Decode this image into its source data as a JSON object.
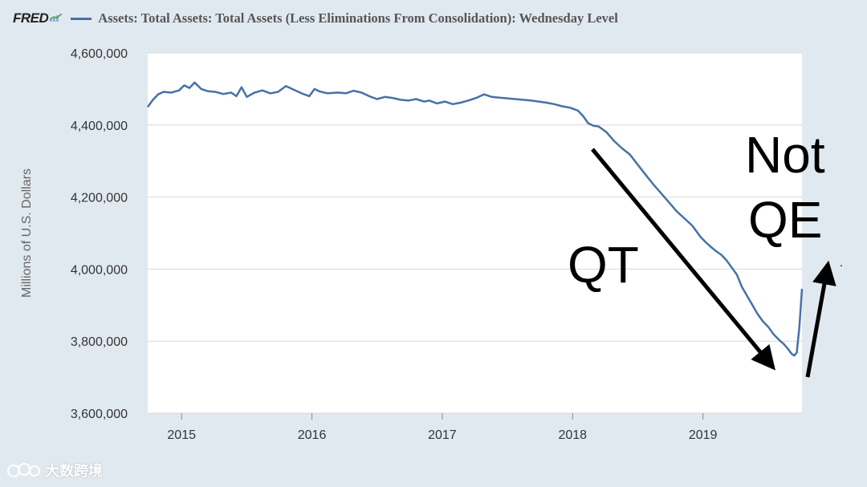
{
  "header": {
    "logo": "FRED",
    "logo_icon": "chart-trend-icon",
    "series_title": "Assets: Total Assets: Total Assets (Less Eliminations From Consolidation): Wednesday Level"
  },
  "colors": {
    "line": "#4572a7",
    "plot_bg": "#ffffff",
    "page_bg": "#e1e9f0",
    "grid": "#d8d8d8",
    "annotation": "#000000"
  },
  "chart_data": {
    "type": "line",
    "title": "Assets: Total Assets: Total Assets (Less Eliminations From Consolidation): Wednesday Level",
    "xlabel": "",
    "ylabel": "Millions of U.S. Dollars",
    "xlim": [
      2014.74,
      2019.76
    ],
    "ylim": [
      3600000,
      4600000
    ],
    "yticks": [
      3600000,
      3800000,
      4000000,
      4200000,
      4400000,
      4600000
    ],
    "ytick_labels": [
      "3,600,000",
      "3,800,000",
      "4,000,000",
      "4,200,000",
      "4,400,000",
      "4,600,000"
    ],
    "xticks": [
      2015,
      2016,
      2017,
      2018,
      2019
    ],
    "xtick_labels": [
      "2015",
      "2016",
      "2017",
      "2018",
      "2019"
    ],
    "grid": true,
    "series": [
      {
        "name": "Total Assets",
        "x": [
          2014.74,
          2014.78,
          2014.82,
          2014.86,
          2014.92,
          2014.98,
          2015.02,
          2015.06,
          2015.1,
          2015.15,
          2015.2,
          2015.26,
          2015.32,
          2015.38,
          2015.42,
          2015.46,
          2015.5,
          2015.56,
          2015.62,
          2015.68,
          2015.74,
          2015.8,
          2015.86,
          2015.92,
          2015.98,
          2016.02,
          2016.06,
          2016.12,
          2016.2,
          2016.26,
          2016.32,
          2016.38,
          2016.44,
          2016.5,
          2016.56,
          2016.62,
          2016.68,
          2016.74,
          2016.8,
          2016.86,
          2016.9,
          2016.96,
          2017.02,
          2017.08,
          2017.14,
          2017.2,
          2017.26,
          2017.32,
          2017.38,
          2017.44,
          2017.5,
          2017.56,
          2017.62,
          2017.68,
          2017.74,
          2017.8,
          2017.86,
          2017.92,
          2017.98,
          2018.04,
          2018.08,
          2018.12,
          2018.16,
          2018.2,
          2018.26,
          2018.32,
          2018.38,
          2018.44,
          2018.5,
          2018.56,
          2018.62,
          2018.68,
          2018.74,
          2018.8,
          2018.86,
          2018.92,
          2018.98,
          2019.02,
          2019.06,
          2019.1,
          2019.14,
          2019.18,
          2019.22,
          2019.26,
          2019.3,
          2019.34,
          2019.38,
          2019.42,
          2019.46,
          2019.5,
          2019.54,
          2019.58,
          2019.62,
          2019.65,
          2019.68,
          2019.7,
          2019.72,
          2019.74,
          2019.76
        ],
        "y": [
          4450000,
          4470000,
          4485000,
          4492000,
          4490000,
          4496000,
          4510000,
          4503000,
          4518000,
          4500000,
          4494000,
          4492000,
          4486000,
          4490000,
          4480000,
          4505000,
          4478000,
          4490000,
          4496000,
          4488000,
          4492000,
          4508000,
          4498000,
          4488000,
          4480000,
          4500000,
          4493000,
          4488000,
          4490000,
          4488000,
          4495000,
          4490000,
          4480000,
          4472000,
          4478000,
          4475000,
          4470000,
          4468000,
          4472000,
          4465000,
          4468000,
          4460000,
          4465000,
          4458000,
          4462000,
          4468000,
          4475000,
          4485000,
          4478000,
          4476000,
          4474000,
          4472000,
          4470000,
          4468000,
          4465000,
          4462000,
          4458000,
          4452000,
          4448000,
          4440000,
          4425000,
          4405000,
          4398000,
          4396000,
          4380000,
          4355000,
          4335000,
          4318000,
          4290000,
          4262000,
          4235000,
          4210000,
          4185000,
          4160000,
          4140000,
          4120000,
          4090000,
          4075000,
          4062000,
          4050000,
          4040000,
          4025000,
          4005000,
          3985000,
          3950000,
          3925000,
          3900000,
          3875000,
          3855000,
          3840000,
          3820000,
          3805000,
          3792000,
          3780000,
          3765000,
          3760000,
          3768000,
          3840000,
          3945000
        ]
      }
    ],
    "annotations": [
      {
        "text": "QT",
        "direction": "down-right arrow"
      },
      {
        "text": "Not",
        "direction": "up arrow"
      },
      {
        "text": "QE",
        "direction": "up arrow"
      },
      {
        "text": "."
      }
    ]
  },
  "watermark": {
    "icon": "weibo-logo-icon",
    "text": "大数跨境"
  }
}
